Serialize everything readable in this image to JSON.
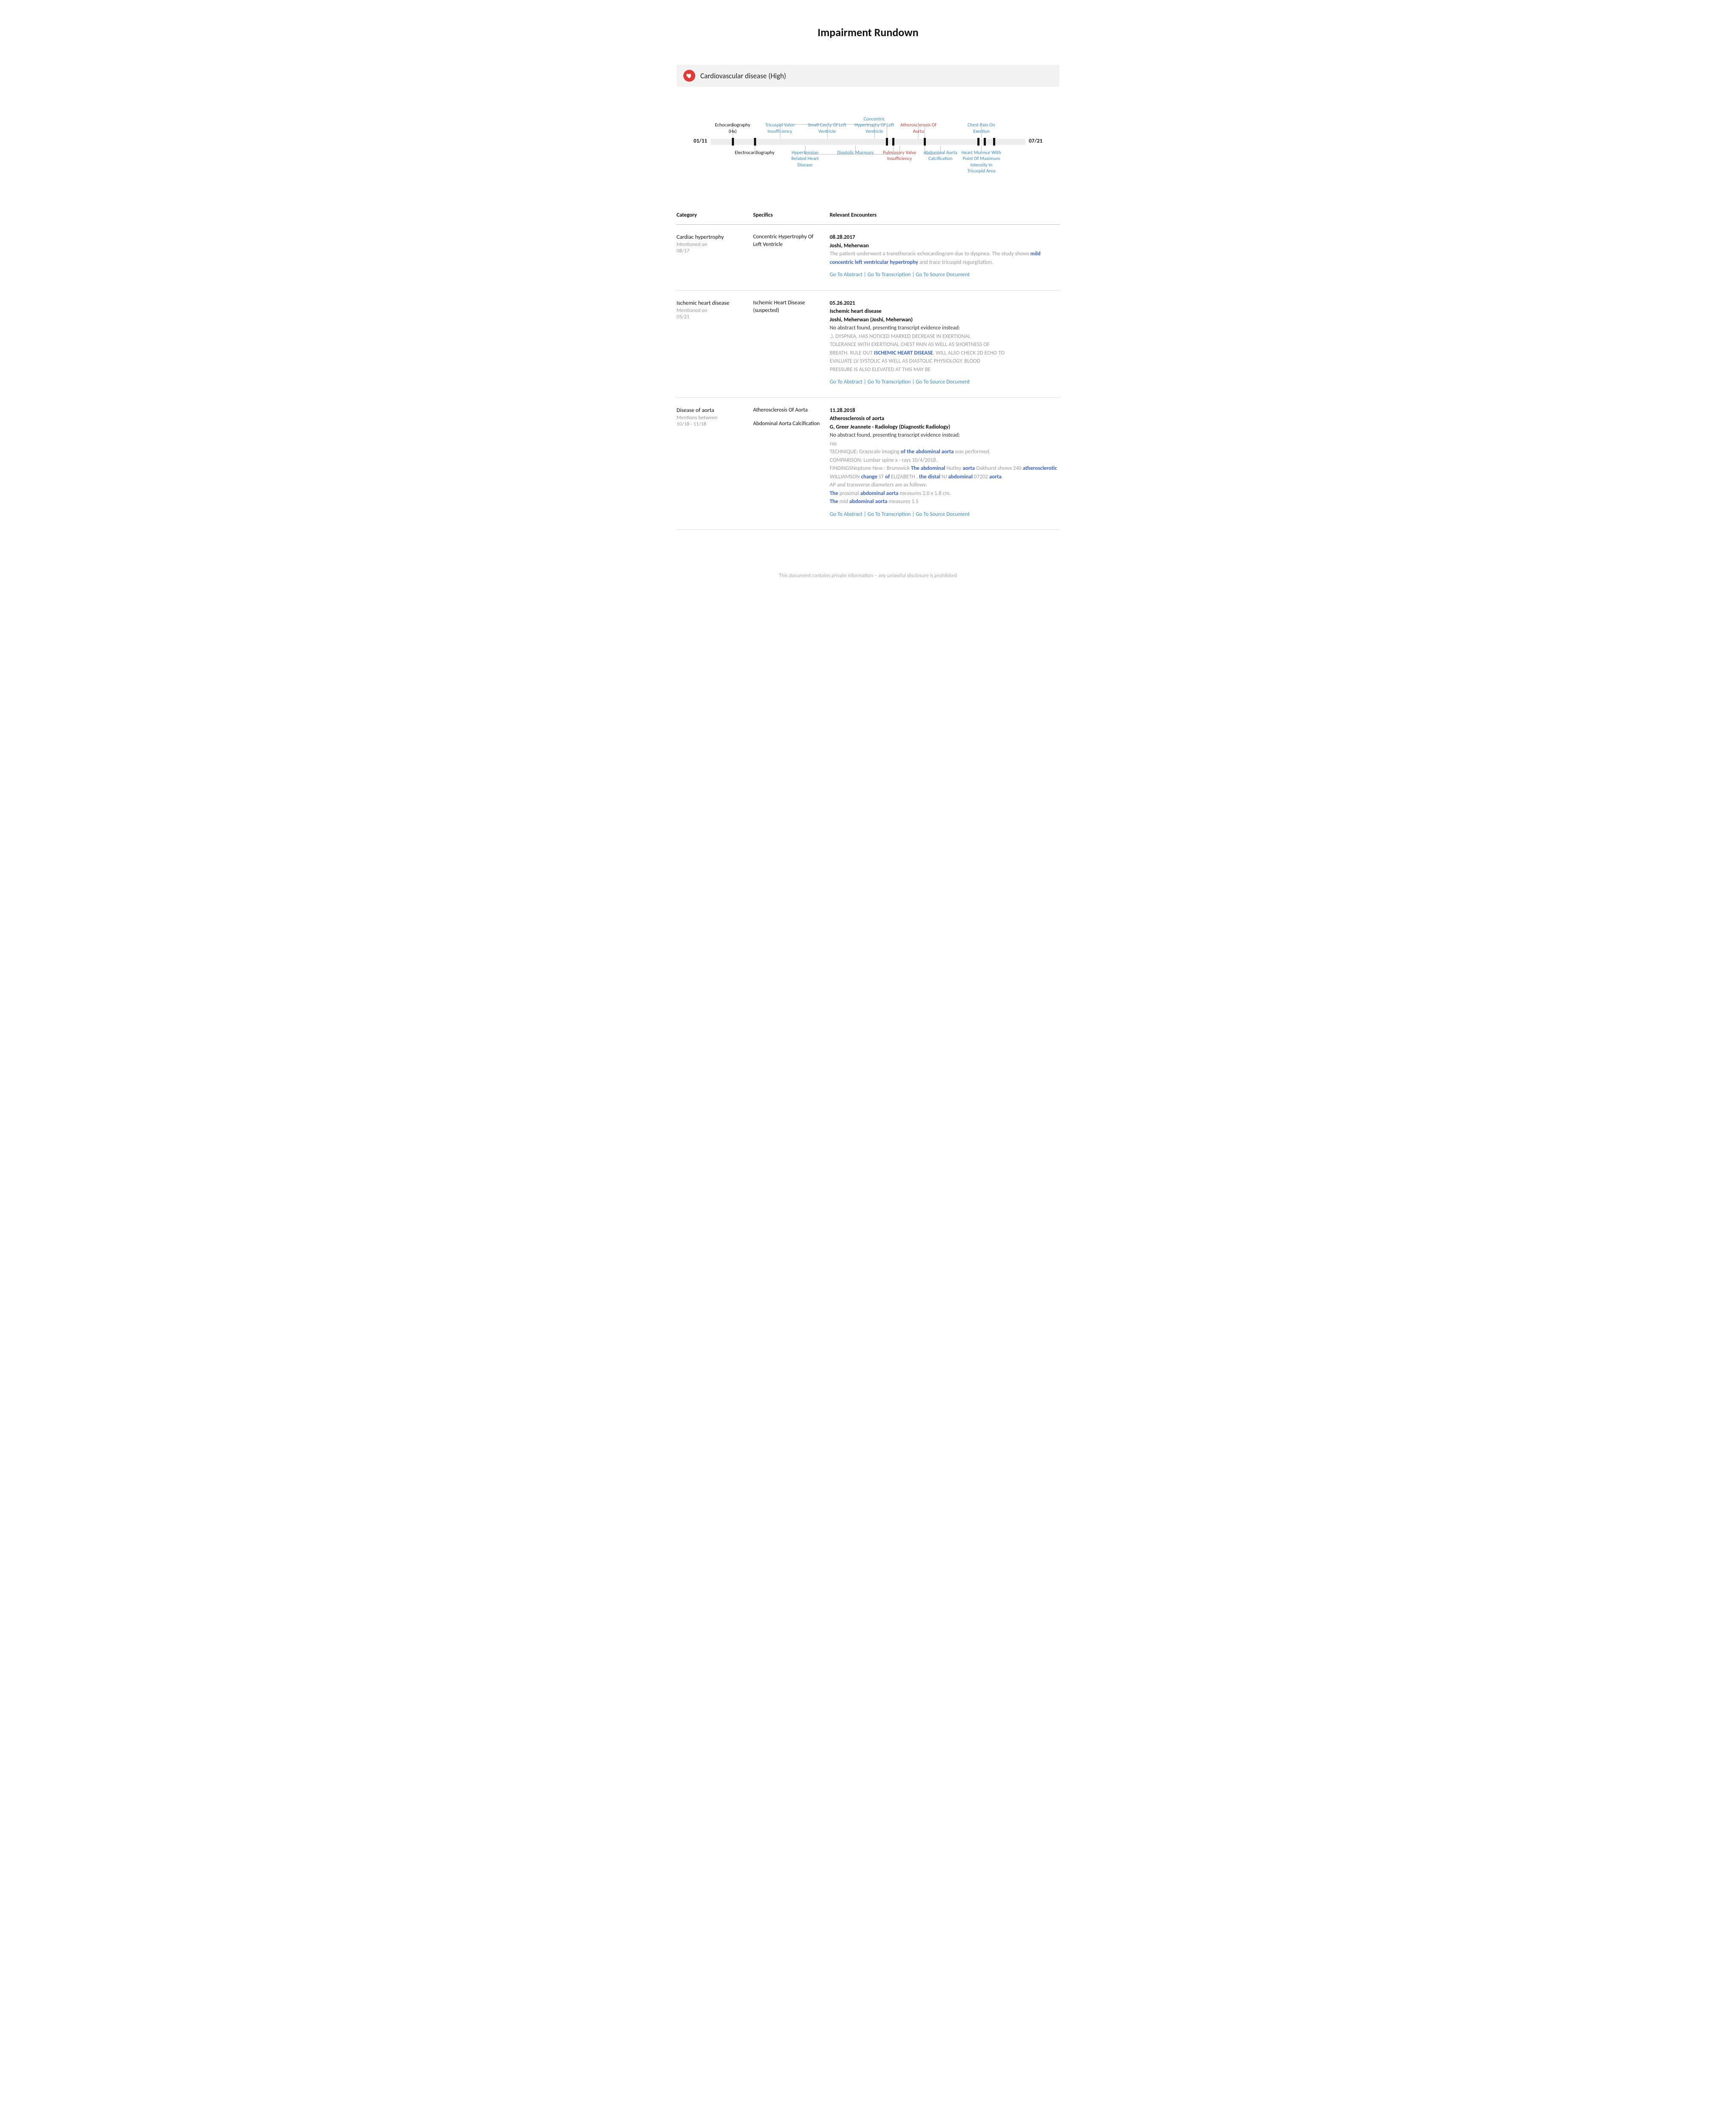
{
  "page": {
    "title": "Impairment Rundown"
  },
  "section": {
    "icon_bg": "#e23a34",
    "title": "Cardiovascular disease (High)"
  },
  "timeline": {
    "start_label": "01/11",
    "end_label": "07/21",
    "bar_color": "#ececec",
    "tick_color": "#111111",
    "ticks_pct": [
      7,
      14,
      56,
      58,
      68,
      85,
      87,
      90
    ],
    "labels": [
      {
        "text": "Echocardiography\n(Hx)",
        "color": "black",
        "pos": "above",
        "x_pct": 7,
        "tick_pct": 7
      },
      {
        "text": "Tricuspid Valve\nInsufficiency",
        "color": "blue",
        "pos": "above",
        "x_pct": 22,
        "tick_pct": 56
      },
      {
        "text": "Small Cavity Of Left\nVentricle",
        "color": "blue",
        "pos": "above",
        "x_pct": 37,
        "tick_pct": 56
      },
      {
        "text": "Concentric\nHypertrophy Of Left\nVentricle",
        "color": "blue",
        "pos": "above",
        "x_pct": 52,
        "tick_pct": 56
      },
      {
        "text": "Atherosclerosis Of\nAorta",
        "color": "red",
        "pos": "above",
        "x_pct": 66,
        "tick_pct": 68
      },
      {
        "text": "Chest Pain On\nExertion",
        "color": "blue",
        "pos": "above",
        "x_pct": 86,
        "tick_pct": 87
      },
      {
        "text": "Electrocardiography",
        "color": "black",
        "pos": "below",
        "x_pct": 14,
        "tick_pct": 14
      },
      {
        "text": "Hypertension\nRelated Heart\nDisease",
        "color": "blue",
        "pos": "below",
        "x_pct": 30,
        "tick_pct": 58
      },
      {
        "text": "Diastolic Murmurs",
        "color": "blue",
        "pos": "below",
        "x_pct": 46,
        "tick_pct": 58
      },
      {
        "text": "Pulmonary Valve\nInsufficiency",
        "color": "red",
        "pos": "below",
        "x_pct": 60,
        "tick_pct": 58
      },
      {
        "text": "Abdominal Aorta\nCalcification",
        "color": "blue",
        "pos": "below",
        "x_pct": 73,
        "tick_pct": 68
      },
      {
        "text": "Heart Murmur With\nPoint Of Maximum\nIntensity In\nTricuspid Area",
        "color": "blue",
        "pos": "below",
        "x_pct": 86,
        "tick_pct": 85
      }
    ]
  },
  "table": {
    "headers": {
      "c1": "Category",
      "c2": "Specifics",
      "c3": "Relevant Encounters"
    },
    "rows": [
      {
        "category": "Cardiac hypertrophy",
        "category_sub": "Mentioned on\n08/17",
        "specifics": [
          "Concentric Hypertrophy Of Left Ventricle"
        ],
        "enc": {
          "date": "08.28.2017",
          "title": "Joshi, Meherwan",
          "body_html": "<span class='muted'>The patient underwent a transthoracic echocardiogram due to dyspnea. The study shows </span><span class='hl'>mild concentric left ventricular hypertrophy</span><span class='muted'> and trace tricuspid regurgitation.</span>"
        }
      },
      {
        "category": "Ischemic heart disease",
        "category_sub": "Mentioned on\n05/21",
        "specifics": [
          "Ischemic Heart Disease (suspected)"
        ],
        "enc": {
          "date": "05.26.2021",
          "title": "Ischemic heart disease",
          "sub": "Joshi, Meherwan (Joshi, Meherwan)",
          "lead": "No abstract found, presenting transcript evidence instead:",
          "body_html": "<span class='muted'>.), DYSPNEA. HAS NOTICED MARKED DECREASE IN EXERTIONAL<br>TOLERANCE WITH EXERTIONAL CHEST PAIN AS WELL AS SHORTNESS OF<br>BREATH. RULE OUT </span><span class='hlb'>ISCHEMIC HEART DISEASE</span><span class='muted'>. WILL ALSO CHECK 2D ECHO TO<br>EVALUATE LV SYSTOLIC AS WELL AS DIASTOLIC PHYSIOLOGY. BLOOD<br>PRESSURE IS ALSO ELEVATED AT THIS MAY BE</span>"
        }
      },
      {
        "category": "Disease of aorta",
        "category_sub": "Mentions between\n10/18 - 11/18",
        "specifics": [
          "Atherosclerosis Of Aorta",
          "Abdominal Aorta Calcification"
        ],
        "enc": {
          "date": "11.28.2018",
          "title": "Atherosclerosis of aorta",
          "sub": "G, Greer Jeannete - Radiology (Diagnostic Radiology)",
          "lead": "No abstract found, presenting transcript evidence instead:",
          "body_html": "<span class='muted'>ray.<br>TECHNIQUE: Grayscale imaging </span><span class='hlb'>of the abdominal aorta</span><span class='muted'> was performed.<br>COMPARISON: Lumbar spine x - rays 10/4/2018.<br>FINDINGSNeptune New : Brunswick </span><span class='hlb'>The abdominal</span><span class='muted'> Nutley </span><span class='hlb'>aorta</span><span class='muted'> Oakhurst shows 240 </span><span class='hlb'>atherosclerotic</span><span class='muted'><br>WILLIAMSON </span><span class='hlb'>change</span><span class='muted'> ST </span><span class='hlb'>of</span><span class='muted'> ELIZABETH , </span><span class='hlb'>the distal</span><span class='muted'> NJ </span><span class='hlb'>abdominal</span><span class='muted'> 07202 </span><span class='hlb'>aorta</span><span class='muted'>.<br>AP and transverse diameters are as follows:<br></span><span class='hlb'>The</span><span class='muted'> proximal </span><span class='hlb'>abdominal aorta</span><span class='muted'> measures 2.0 x 1.8 cm.<br></span><span class='hlb'>The</span><span class='muted'> mid </span><span class='hlb'>abdominal aorta</span><span class='muted'> measures 1.5</span>"
        }
      }
    ],
    "nav": {
      "abstract": "Go To Abstract",
      "transcription": "Go To Transcription",
      "source": "Go To Source Document",
      "sep": " | "
    }
  },
  "footer": "This document contains private information – any unlawful disclosure is prohibited"
}
